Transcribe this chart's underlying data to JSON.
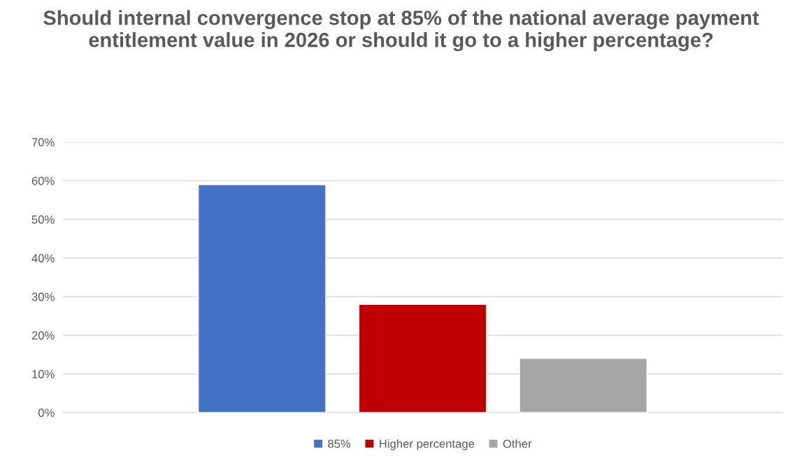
{
  "chart_data": {
    "type": "bar",
    "title": "Should internal convergence stop at 85% of the national average payment entitlement value in 2026 or should it go to a higher percentage?",
    "categories": [
      null
    ],
    "series": [
      {
        "name": "85%",
        "color": "#4472c4",
        "values": [
          59
        ]
      },
      {
        "name": "Higher percentage",
        "color": "#c00000",
        "values": [
          28
        ]
      },
      {
        "name": "Other",
        "color": "#a5a5a5",
        "values": [
          14
        ]
      }
    ],
    "ylim": [
      0,
      70
    ],
    "yticks": [
      {
        "value": 0,
        "label": "0%"
      },
      {
        "value": 10,
        "label": "10%"
      },
      {
        "value": 20,
        "label": "20%"
      },
      {
        "value": 30,
        "label": "30%"
      },
      {
        "value": 40,
        "label": "40%"
      },
      {
        "value": 50,
        "label": "50%"
      },
      {
        "value": 60,
        "label": "60%"
      },
      {
        "value": 70,
        "label": "70%"
      }
    ],
    "grid": "y",
    "legend": "bottom"
  }
}
